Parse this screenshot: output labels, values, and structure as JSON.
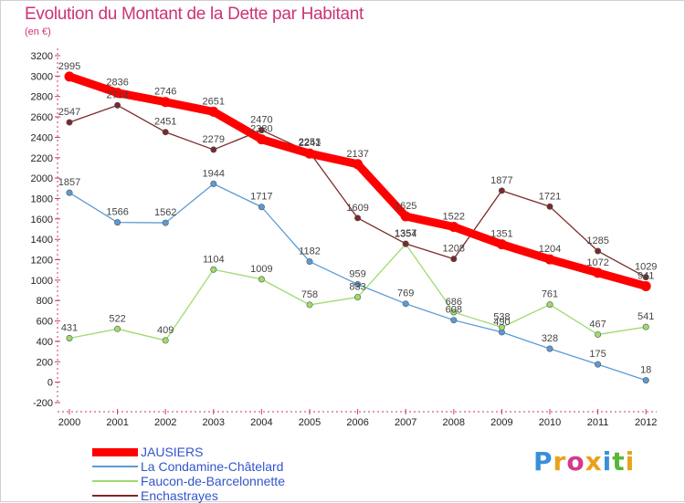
{
  "header": {
    "title": "Evolution du Montant de la Dette par Habitant",
    "unit": "(en €)"
  },
  "brand": {
    "letters": [
      "P",
      "r",
      "o",
      "x",
      "i",
      "t",
      "i"
    ],
    "colors": [
      "#3a8fd8",
      "#e8a21c",
      "#d23a8a",
      "#e8a21c",
      "#3a8fd8",
      "#58b63a",
      "#e8a21c"
    ]
  },
  "chart_data": {
    "type": "line",
    "x": [
      "2000",
      "2001",
      "2002",
      "2003",
      "2004",
      "2005",
      "2006",
      "2007",
      "2008",
      "2009",
      "2010",
      "2011",
      "2012"
    ],
    "ylim": [
      -200,
      3200
    ],
    "yticks": [
      -200,
      0,
      200,
      400,
      600,
      800,
      1000,
      1200,
      1400,
      1600,
      1800,
      2000,
      2200,
      2400,
      2600,
      2800,
      3000,
      3200
    ],
    "grid": false,
    "legend_position": "bottom-left",
    "series": [
      {
        "name": "JAUSIERS",
        "color": "#ff0000",
        "emphasis": true,
        "values": [
          2995,
          2836,
          2746,
          2651,
          2380,
          2241,
          2137,
          1625,
          1522,
          1351,
          1204,
          1072,
          941
        ]
      },
      {
        "name": "La Condamine-Châtelard",
        "color": "#5b9bd5",
        "values": [
          1857,
          1566,
          1562,
          1944,
          1717,
          1182,
          959,
          769,
          608,
          490,
          328,
          175,
          18
        ]
      },
      {
        "name": "Faucon-de-Barcelonnette",
        "color": "#9edb6e",
        "values": [
          431,
          522,
          409,
          1104,
          1009,
          758,
          833,
          1354,
          686,
          538,
          761,
          467,
          541
        ]
      },
      {
        "name": "Enchastrayes",
        "color": "#7a2a2a",
        "values": [
          2547,
          2714,
          2451,
          2279,
          2470,
          2253,
          1609,
          1357,
          1208,
          1877,
          1721,
          1285,
          1029
        ]
      }
    ]
  }
}
